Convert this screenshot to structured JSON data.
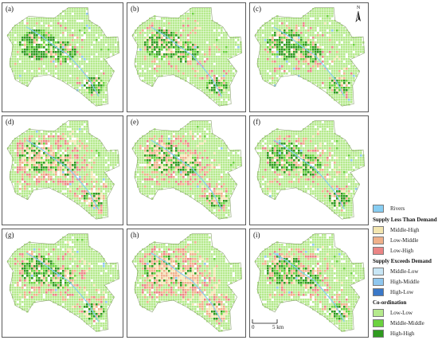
{
  "panels": [
    {
      "label": "(a)",
      "palette": "a"
    },
    {
      "label": "(b)",
      "palette": "b"
    },
    {
      "label": "(c)",
      "palette": "c"
    },
    {
      "label": "(d)",
      "palette": "d"
    },
    {
      "label": "(e)",
      "palette": "e"
    },
    {
      "label": "(f)",
      "palette": "f"
    },
    {
      "label": "(g)",
      "palette": "g"
    },
    {
      "label": "(h)",
      "palette": "h"
    },
    {
      "label": "(i)",
      "palette": "i"
    }
  ],
  "north_arrow": {
    "letter": "N",
    "icon": "north-arrow-icon"
  },
  "legend": {
    "rivers": {
      "label": "Rivers",
      "color": "#87cdf2"
    },
    "groups": [
      {
        "heading": "Supply Less Than Demand",
        "items": [
          {
            "label": "Middle-High",
            "color": "#f3e6b0"
          },
          {
            "label": "Low-Middle",
            "color": "#efb08a"
          },
          {
            "label": "Low-High",
            "color": "#eb8585"
          }
        ]
      },
      {
        "heading": "Supply Exceeds Demand",
        "items": [
          {
            "label": "Middle-Low",
            "color": "#c8e6f5"
          },
          {
            "label": "High-Middle",
            "color": "#8fc7ef"
          },
          {
            "label": "High-Low",
            "color": "#3a78c8"
          }
        ]
      },
      {
        "heading": "Co-ordination",
        "items": [
          {
            "label": "Low-Low",
            "color": "#b5ea8c"
          },
          {
            "label": "Middle-Middle",
            "color": "#6bd23f"
          },
          {
            "label": "High-High",
            "color": "#2f9a1f"
          }
        ]
      }
    ]
  },
  "scale_bar": {
    "start": "0",
    "end": "5 km"
  }
}
